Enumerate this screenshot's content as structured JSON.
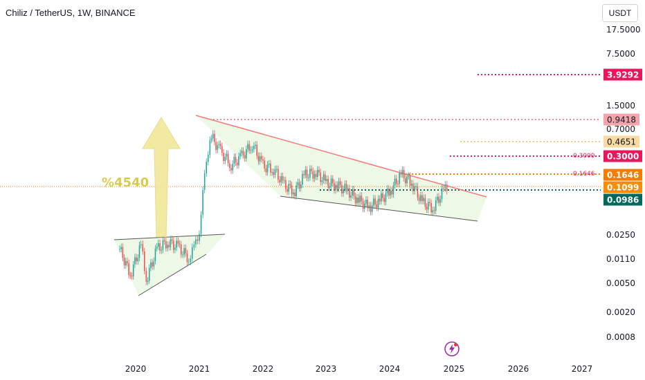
{
  "header": {
    "symbol_title": "Chiliz / TetherUS, 1W, BINANCE",
    "currency_button": "USDT"
  },
  "annotation": {
    "gain_text": "%4540"
  },
  "price_tags": [
    {
      "key": "t39292",
      "value": "3.9292",
      "color": "#e8175d"
    },
    {
      "key": "t09418",
      "value": "0.9418",
      "color": "#f28b96"
    },
    {
      "key": "t04651",
      "value": "0.4651",
      "color": "#f6c97a"
    },
    {
      "key": "t03000",
      "value": "0.3000",
      "color": "#e8175d"
    },
    {
      "key": "t01646",
      "value": "0.1646",
      "color": "#f57c00"
    },
    {
      "key": "t01099",
      "value": "0.1099",
      "color": "#fb8c00"
    },
    {
      "key": "t00986",
      "value": "0.0986",
      "color": "#00695c"
    }
  ],
  "small_labels": {
    "l03000": "0.3000",
    "l01646": "0.1646"
  },
  "chart_data": {
    "type": "line",
    "title": "Chiliz / TetherUS, 1W, BINANCE",
    "y_scale": "log",
    "y_ticks": [
      "17.5000",
      "7.5000",
      "1.5000",
      "0.7000",
      "0.0250",
      "0.0110",
      "0.0050",
      "0.0020",
      "0.0008"
    ],
    "x_ticks": [
      "2020",
      "2021",
      "2022",
      "2023",
      "2024",
      "2025",
      "2026",
      "2027"
    ],
    "horizontal_levels": [
      3.9292,
      0.9418,
      0.4651,
      0.3,
      0.1646,
      0.1099,
      0.0986
    ],
    "colors": {
      "up": "#26a69a",
      "down": "#ef5350",
      "channel_fill": "#e8f8e0",
      "resistance": "#f47a7a",
      "support": "#555555",
      "arrow": "#f1e89a"
    },
    "price_series": [
      {
        "date": "2019-10",
        "close": 0.016
      },
      {
        "date": "2019-12",
        "close": 0.007
      },
      {
        "date": "2020-02",
        "close": 0.018
      },
      {
        "date": "2020-03",
        "close": 0.006
      },
      {
        "date": "2020-05",
        "close": 0.016
      },
      {
        "date": "2020-07",
        "close": 0.02
      },
      {
        "date": "2020-09",
        "close": 0.017
      },
      {
        "date": "2020-11",
        "close": 0.012
      },
      {
        "date": "2020-12",
        "close": 0.016
      },
      {
        "date": "2021-01",
        "close": 0.03
      },
      {
        "date": "2021-02",
        "close": 0.15
      },
      {
        "date": "2021-03",
        "close": 0.6
      },
      {
        "date": "2021-05",
        "close": 0.35
      },
      {
        "date": "2021-07",
        "close": 0.23
      },
      {
        "date": "2021-09",
        "close": 0.3
      },
      {
        "date": "2021-11",
        "close": 0.45
      },
      {
        "date": "2022-01",
        "close": 0.22
      },
      {
        "date": "2022-03",
        "close": 0.2
      },
      {
        "date": "2022-05",
        "close": 0.12
      },
      {
        "date": "2022-07",
        "close": 0.1
      },
      {
        "date": "2022-09",
        "close": 0.17
      },
      {
        "date": "2022-11",
        "close": 0.18
      },
      {
        "date": "2023-01",
        "close": 0.13
      },
      {
        "date": "2023-03",
        "close": 0.12
      },
      {
        "date": "2023-05",
        "close": 0.1
      },
      {
        "date": "2023-07",
        "close": 0.075
      },
      {
        "date": "2023-09",
        "close": 0.06
      },
      {
        "date": "2023-11",
        "close": 0.075
      },
      {
        "date": "2024-01",
        "close": 0.1
      },
      {
        "date": "2024-03",
        "close": 0.17
      },
      {
        "date": "2024-05",
        "close": 0.13
      },
      {
        "date": "2024-07",
        "close": 0.07
      },
      {
        "date": "2024-09",
        "close": 0.058
      },
      {
        "date": "2024-11",
        "close": 0.1
      },
      {
        "date": "2024-12",
        "close": 0.12
      }
    ]
  }
}
